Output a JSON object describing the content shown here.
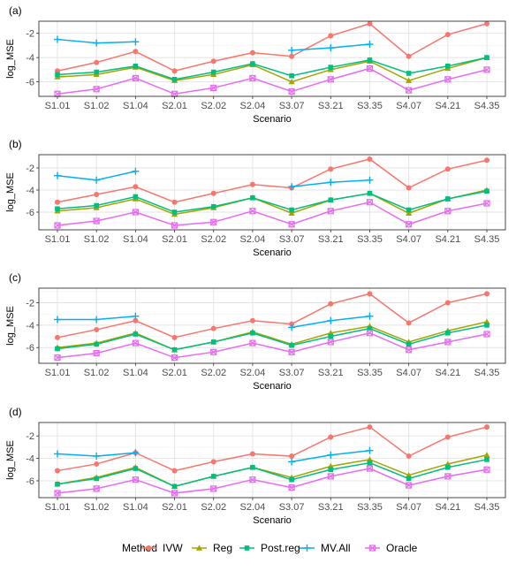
{
  "colors": {
    "IVW": "#F8766D",
    "Reg": "#A3A500",
    "Post.reg": "#00BF7D",
    "MV.All": "#00B0F6",
    "Oracle": "#E76BF3"
  },
  "legend": {
    "title": "Method",
    "items": [
      "IVW",
      "Reg",
      "Post.reg",
      "MV.All",
      "Oracle"
    ]
  },
  "chart_data": [
    {
      "type": "line",
      "panel": "(a)",
      "xlabel": "Scenario",
      "ylabel": "log_MSE",
      "categories": [
        "S1.01",
        "S1.02",
        "S1.04",
        "S2.01",
        "S2.02",
        "S2.04",
        "S3.07",
        "S3.21",
        "S3.35",
        "S4.07",
        "S4.21",
        "S4.35"
      ],
      "yticks": [
        -6,
        -4,
        -2
      ],
      "ylim": [
        -7.2,
        -1.0
      ],
      "grid": true,
      "series": [
        {
          "name": "IVW",
          "marker": "circle",
          "values": [
            -5.1,
            -4.4,
            -3.5,
            -5.1,
            -4.3,
            -3.6,
            -3.9,
            -2.2,
            -1.2,
            -3.9,
            -2.1,
            -1.2
          ]
        },
        {
          "name": "Reg",
          "marker": "triangle",
          "values": [
            -5.6,
            -5.4,
            -4.8,
            -5.9,
            -5.4,
            -4.6,
            -6.0,
            -5.0,
            -4.3,
            -5.9,
            -4.9,
            -4.0
          ]
        },
        {
          "name": "Post.reg",
          "marker": "square",
          "values": [
            -5.4,
            -5.2,
            -4.7,
            -5.8,
            -5.2,
            -4.5,
            -5.5,
            -4.8,
            -4.2,
            -5.3,
            -4.7,
            -4.0
          ]
        },
        {
          "name": "MV.All",
          "marker": "plus",
          "values": [
            -2.5,
            -2.8,
            -2.7,
            null,
            null,
            null,
            -3.4,
            -3.2,
            -2.9,
            null,
            null,
            null
          ]
        },
        {
          "name": "Oracle",
          "marker": "squarex",
          "values": [
            -7.0,
            -6.6,
            -5.7,
            -7.0,
            -6.5,
            -5.7,
            -6.8,
            -5.8,
            -4.9,
            -6.7,
            -5.8,
            -5.0
          ]
        }
      ]
    },
    {
      "type": "line",
      "panel": "(b)",
      "xlabel": "Scenario",
      "ylabel": "log_MSE",
      "categories": [
        "S1.01",
        "S1.02",
        "S1.04",
        "S2.01",
        "S2.02",
        "S2.04",
        "S3.07",
        "S3.21",
        "S3.35",
        "S4.07",
        "S4.21",
        "S4.35"
      ],
      "yticks": [
        -6,
        -4,
        -2
      ],
      "ylim": [
        -7.6,
        -0.8
      ],
      "grid": true,
      "series": [
        {
          "name": "IVW",
          "marker": "circle",
          "values": [
            -5.1,
            -4.4,
            -3.7,
            -5.1,
            -4.3,
            -3.5,
            -3.8,
            -2.1,
            -1.2,
            -3.8,
            -2.1,
            -1.3
          ]
        },
        {
          "name": "Reg",
          "marker": "triangle",
          "values": [
            -5.9,
            -5.6,
            -4.8,
            -6.2,
            -5.6,
            -4.7,
            -6.1,
            -4.9,
            -4.3,
            -6.1,
            -4.8,
            -4.0
          ]
        },
        {
          "name": "Post.reg",
          "marker": "square",
          "values": [
            -5.7,
            -5.4,
            -4.6,
            -6.0,
            -5.5,
            -4.7,
            -5.8,
            -4.9,
            -4.3,
            -5.8,
            -4.8,
            -4.1
          ]
        },
        {
          "name": "MV.All",
          "marker": "plus",
          "values": [
            -2.7,
            -3.1,
            -2.3,
            null,
            null,
            null,
            -3.7,
            -3.3,
            -3.1,
            null,
            null,
            null
          ]
        },
        {
          "name": "Oracle",
          "marker": "squarex",
          "values": [
            -7.2,
            -6.8,
            -6.0,
            -7.2,
            -6.9,
            -5.9,
            -7.1,
            -5.9,
            -5.1,
            -7.1,
            -5.9,
            -5.2
          ]
        }
      ]
    },
    {
      "type": "line",
      "panel": "(c)",
      "xlabel": "Scenario",
      "ylabel": "log_MSE",
      "categories": [
        "S1.01",
        "S1.02",
        "S1.04",
        "S2.01",
        "S2.02",
        "S2.04",
        "S3.07",
        "S3.21",
        "S3.35",
        "S4.07",
        "S4.21",
        "S4.35"
      ],
      "yticks": [
        -6,
        -4,
        -2
      ],
      "ylim": [
        -7.4,
        -0.7
      ],
      "grid": true,
      "series": [
        {
          "name": "IVW",
          "marker": "circle",
          "values": [
            -5.1,
            -4.4,
            -3.6,
            -5.1,
            -4.3,
            -3.6,
            -3.9,
            -2.1,
            -1.2,
            -3.8,
            -2.0,
            -1.2
          ]
        },
        {
          "name": "Reg",
          "marker": "triangle",
          "values": [
            -6.0,
            -5.6,
            -4.7,
            -6.2,
            -5.5,
            -4.6,
            -5.7,
            -4.7,
            -4.1,
            -5.5,
            -4.5,
            -3.7
          ]
        },
        {
          "name": "Post.reg",
          "marker": "square",
          "values": [
            -6.1,
            -5.7,
            -4.8,
            -6.2,
            -5.5,
            -4.7,
            -5.8,
            -5.0,
            -4.3,
            -5.7,
            -4.7,
            -4.0
          ]
        },
        {
          "name": "MV.All",
          "marker": "plus",
          "values": [
            -3.5,
            -3.5,
            -3.2,
            null,
            null,
            null,
            -4.2,
            -3.6,
            -3.2,
            null,
            null,
            null
          ]
        },
        {
          "name": "Oracle",
          "marker": "squarex",
          "values": [
            -6.9,
            -6.5,
            -5.6,
            -6.9,
            -6.4,
            -5.6,
            -6.4,
            -5.5,
            -4.7,
            -6.2,
            -5.5,
            -4.8
          ]
        }
      ]
    },
    {
      "type": "line",
      "panel": "(d)",
      "xlabel": "Scenario",
      "ylabel": "log_MSE",
      "categories": [
        "S1.01",
        "S1.02",
        "S1.04",
        "S2.01",
        "S2.02",
        "S2.04",
        "S3.07",
        "S3.21",
        "S3.35",
        "S4.07",
        "S4.21",
        "S4.35"
      ],
      "yticks": [
        -6,
        -4,
        -2
      ],
      "ylim": [
        -7.5,
        -0.8
      ],
      "grid": true,
      "series": [
        {
          "name": "IVW",
          "marker": "circle",
          "values": [
            -5.1,
            -4.5,
            -3.5,
            -5.1,
            -4.3,
            -3.6,
            -3.8,
            -2.1,
            -1.2,
            -3.8,
            -2.1,
            -1.2
          ]
        },
        {
          "name": "Reg",
          "marker": "triangle",
          "values": [
            -6.3,
            -5.7,
            -4.8,
            -6.5,
            -5.6,
            -4.8,
            -5.7,
            -4.7,
            -4.1,
            -5.5,
            -4.5,
            -3.7
          ]
        },
        {
          "name": "Post.reg",
          "marker": "square",
          "values": [
            -6.3,
            -5.8,
            -4.9,
            -6.5,
            -5.6,
            -4.8,
            -5.9,
            -5.0,
            -4.4,
            -5.8,
            -4.8,
            -4.1
          ]
        },
        {
          "name": "MV.All",
          "marker": "plus",
          "values": [
            -3.6,
            -3.8,
            -3.5,
            null,
            null,
            null,
            -4.3,
            -3.7,
            -3.3,
            null,
            null,
            null
          ]
        },
        {
          "name": "Oracle",
          "marker": "squarex",
          "values": [
            -7.1,
            -6.7,
            -5.9,
            -7.1,
            -6.7,
            -5.9,
            -6.6,
            -5.6,
            -4.9,
            -6.4,
            -5.6,
            -5.0
          ]
        }
      ]
    }
  ]
}
